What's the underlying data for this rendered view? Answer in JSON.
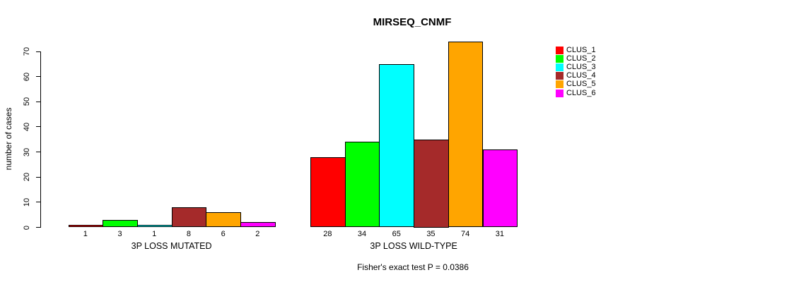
{
  "chart_data": {
    "type": "bar",
    "title": "MIRSEQ_CNMF",
    "ylabel": "number of cases",
    "xlabel": "",
    "ylim": [
      0,
      70
    ],
    "yticks": [
      0,
      10,
      20,
      30,
      40,
      50,
      60,
      70
    ],
    "grid": false,
    "legend_position": "right-outside",
    "series": [
      {
        "name": "CLUS_1",
        "color": "#FF0000"
      },
      {
        "name": "CLUS_2",
        "color": "#00FF00"
      },
      {
        "name": "CLUS_3",
        "color": "#00FFFF"
      },
      {
        "name": "CLUS_4",
        "color": "#A52A2A"
      },
      {
        "name": "CLUS_5",
        "color": "#FFA500"
      },
      {
        "name": "CLUS_6",
        "color": "#FF00FF"
      }
    ],
    "groups": [
      {
        "label": "3P LOSS MUTATED",
        "values": [
          1,
          3,
          1,
          8,
          6,
          2
        ]
      },
      {
        "label": "3P LOSS WILD-TYPE",
        "values": [
          28,
          34,
          65,
          35,
          74,
          31
        ]
      }
    ],
    "bar_value_labels_shown": true,
    "footer": "Fisher's exact test P = 0.0386"
  },
  "colors": {
    "background": "#FFFFFF",
    "axis": "#000000",
    "text": "#000000",
    "bar_border": "#000000"
  }
}
